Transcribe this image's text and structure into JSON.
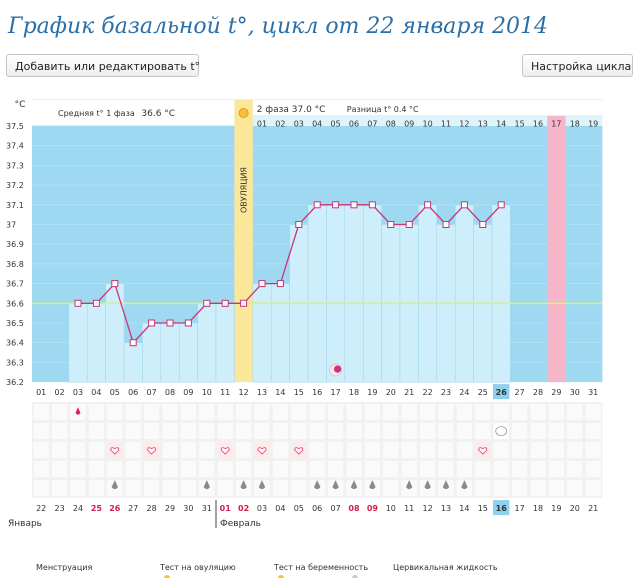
{
  "page": {
    "title": "График базальной t°, цикл от 22 января 2014",
    "btn_edit": "Добавить или редактировать t°",
    "btn_settings": "Настройка цикла"
  },
  "chart_data": {
    "type": "line",
    "title": "График базальной t°, цикл от 22 января 2014",
    "ylabel": "°C",
    "ylim": [
      36.2,
      37.5
    ],
    "yticks": [
      "37.5",
      "37.4",
      "37.3",
      "37.2",
      "37.1",
      "37",
      "36.9",
      "36.8",
      "36.7",
      "36.6",
      "36.5",
      "36.4",
      "36.3",
      "36.2"
    ],
    "cycle_days": [
      "01",
      "02",
      "03",
      "04",
      "05",
      "06",
      "07",
      "08",
      "09",
      "10",
      "11",
      "12",
      "13",
      "14",
      "15",
      "16",
      "17",
      "18",
      "19",
      "20",
      "21",
      "22",
      "23",
      "24",
      "25",
      "26",
      "27",
      "28",
      "29",
      "30",
      "31"
    ],
    "temperatures": [
      null,
      null,
      36.6,
      36.6,
      36.7,
      36.4,
      36.5,
      36.5,
      36.5,
      36.6,
      36.6,
      36.6,
      36.7,
      36.7,
      37.0,
      37.1,
      37.1,
      37.1,
      37.1,
      37.0,
      37.0,
      37.1,
      37.0,
      37.1,
      37.0,
      37.1
    ],
    "coverline": 36.6,
    "ovulation_day": 12,
    "ovulation_label": "ОВУЛЯЦИЯ",
    "today_cycle_day": 26,
    "expected_period_day": 29,
    "moon_day": 17,
    "phase1_label": "Средняя t° 1 фаза",
    "phase1_value": "36.6 °C",
    "phase2_label": "2 фаза",
    "phase2_value": "37.0 °C",
    "diff_label": "Разница t°",
    "diff_value": "0.4 °C",
    "phase2_days": [
      "01",
      "02",
      "03",
      "04",
      "05",
      "06",
      "07",
      "08",
      "09",
      "10",
      "11",
      "12",
      "13",
      "14",
      "15",
      "16",
      "17",
      "18",
      "19"
    ],
    "phase2_highlight_day": "17",
    "calendar_days": [
      "22",
      "23",
      "24",
      "25",
      "26",
      "27",
      "28",
      "29",
      "30",
      "31",
      "01",
      "02",
      "03",
      "04",
      "05",
      "06",
      "07",
      "08",
      "09",
      "10",
      "11",
      "12",
      "13",
      "14",
      "15",
      "16",
      "17",
      "18",
      "19",
      "20",
      "21"
    ],
    "red_calendar_indices": [
      3,
      4,
      10,
      11,
      17,
      18
    ],
    "month_left": "Январь",
    "month_right": "Февраль",
    "menstruation_days": [
      3
    ],
    "cervical_days": [
      26
    ],
    "heart_days": [
      5,
      7,
      11,
      13,
      15,
      25
    ],
    "drop_days": [
      5,
      10,
      12,
      13,
      16,
      17,
      18,
      19,
      21,
      22,
      23,
      24
    ]
  },
  "legend": {
    "menstruation": "Менструация",
    "ovulation_test": "Тест на овуляцию",
    "pregnancy_test": "Тест на беременность",
    "cervical_fluid": "Цервикальная жидкость"
  },
  "colors": {
    "chart_blue": "#9fd9f1",
    "column_blue": "#cfeefb",
    "line": "#c4367a",
    "ovulation": "#fbe79a",
    "period": "#f7b5c9",
    "coverline": "#d6f08a",
    "title": "#2b6fa8"
  }
}
